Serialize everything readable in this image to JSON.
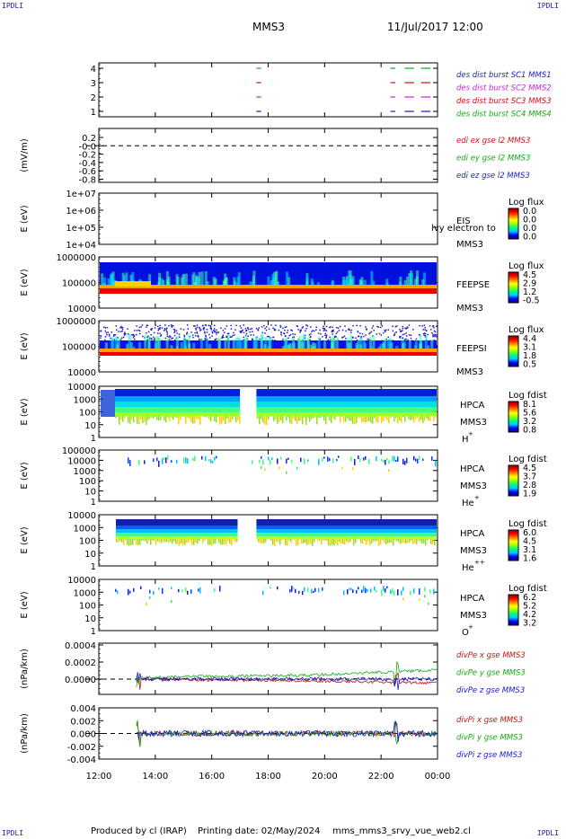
{
  "corner_label": "IPDLI",
  "header": {
    "spacecraft": "MMS3",
    "datetime": "11/Jul/2017 12:00"
  },
  "footer": {
    "produced_by": "Produced by cl (IRAP)",
    "printing_date": "Printing date: 02/May/2024",
    "script": "mms_mms3_srvy_vue_web2.cl"
  },
  "x_ticks": [
    "12:00",
    "14:00",
    "16:00",
    "18:00",
    "20:00",
    "22:00",
    "00:00"
  ],
  "panels": [
    {
      "id": "burst",
      "y_ticks": [
        "4",
        "3",
        "2",
        "1"
      ],
      "legend": [
        {
          "text": "des dist burst SC1 MMS1",
          "color": "#1a1acc"
        },
        {
          "text": "des dist burst SC2 MMS2",
          "color": "#cc22cc"
        },
        {
          "text": "des dist burst SC3 MMS3",
          "color": "#cc1111"
        },
        {
          "text": "des dist burst SC4 MMS4",
          "color": "#11aa11"
        }
      ]
    },
    {
      "id": "edi",
      "ylabel": "(mV/m)",
      "y_ticks": [
        "0.2",
        "-0.0",
        "-0.2",
        "-0.4",
        "-0.6",
        "-0.8"
      ],
      "legend": [
        {
          "text": "edi ex gse l2 MMS3",
          "color": "#cc1111"
        },
        {
          "text": "edi ey gse l2 MMS3",
          "color": "#11aa11"
        },
        {
          "text": "edi ez gse l2 MMS3",
          "color": "#1a1acc"
        }
      ]
    },
    {
      "id": "eis",
      "ylabel": "E (eV)",
      "y_ticks": [
        "1e+07",
        "1e+06",
        "1e+05",
        "1e+04"
      ],
      "label1": "EIS",
      "label2": "MMS3",
      "overlay": "lvy electron to",
      "cb_title": "Log flux",
      "cb_ticks": [
        "0.0",
        "0.0",
        "0.0",
        "0.0"
      ]
    },
    {
      "id": "feepse",
      "ylabel": "E (eV)",
      "y_ticks": [
        "1000000",
        "100000",
        "10000"
      ],
      "label1": "FEEPSE",
      "label2": "MMS3",
      "cb_title": "Log flux",
      "cb_ticks": [
        "4.5",
        "2.9",
        "1.2",
        "-0.5"
      ]
    },
    {
      "id": "feepsi",
      "ylabel": "E (eV)",
      "y_ticks": [
        "1000000",
        "100000",
        "10000"
      ],
      "label1": "FEEPSI",
      "label2": "MMS3",
      "cb_title": "Log flux",
      "cb_ticks": [
        "4.4",
        "3.1",
        "1.8",
        "0.5"
      ]
    },
    {
      "id": "hpca_h",
      "ylabel": "E (eV)",
      "y_ticks": [
        "10000",
        "1000",
        "100",
        "10",
        "1"
      ],
      "label1": "HPCA",
      "label2": "MMS3",
      "species": "H",
      "charge": "+",
      "cb_title": "Log fdist",
      "cb_ticks": [
        "8.1",
        "5.6",
        "3.2",
        "0.8"
      ]
    },
    {
      "id": "hpca_he1",
      "ylabel": "E (eV)",
      "y_ticks": [
        "100000",
        "10000",
        "1000",
        "100",
        "10",
        "1"
      ],
      "label1": "HPCA",
      "label2": "MMS3",
      "species": "He",
      "charge": "+",
      "cb_title": "Log fdist",
      "cb_ticks": [
        "4.5",
        "3.7",
        "2.8",
        "1.9"
      ]
    },
    {
      "id": "hpca_he2",
      "ylabel": "E (eV)",
      "y_ticks": [
        "10000",
        "1000",
        "100",
        "10",
        "1"
      ],
      "label1": "HPCA",
      "label2": "MMS3",
      "species": "He",
      "charge": "++",
      "cb_title": "Log fdist",
      "cb_ticks": [
        "6.0",
        "4.5",
        "3.1",
        "1.6"
      ]
    },
    {
      "id": "hpca_o",
      "ylabel": "E (eV)",
      "y_ticks": [
        "10000",
        "1000",
        "100",
        "10",
        "1"
      ],
      "label1": "HPCA",
      "label2": "MMS3",
      "species": "O",
      "charge": "+",
      "cb_title": "Log fdist",
      "cb_ticks": [
        "6.2",
        "5.2",
        "4.2",
        "3.2"
      ]
    },
    {
      "id": "divpe",
      "ylabel": "(nPa/km)",
      "y_ticks": [
        "0.0004",
        "0.0002",
        "0.0000"
      ],
      "legend": [
        {
          "text": "divPe x gse MMS3",
          "color": "#cc1111"
        },
        {
          "text": "divPe y gse MMS3",
          "color": "#11aa11"
        },
        {
          "text": "divPe z gse MMS3",
          "color": "#1a1acc"
        }
      ]
    },
    {
      "id": "divpi",
      "ylabel": "(nPa/km)",
      "y_ticks": [
        "0.004",
        "0.002",
        "0.000",
        "-0.002",
        "-0.004"
      ],
      "legend": [
        {
          "text": "divPi x gse MMS3",
          "color": "#cc1111"
        },
        {
          "text": "divPi y gse MMS3",
          "color": "#11aa11"
        },
        {
          "text": "divPi z gse MMS3",
          "color": "#1a1acc"
        }
      ]
    }
  ],
  "chart_data": {
    "type": "line",
    "x_range": [
      "12:00",
      "00:00"
    ],
    "panels": [
      {
        "name": "burst",
        "ylim": [
          1,
          4
        ],
        "series": [
          {
            "name": "des dist burst SC1 MMS1",
            "level": 1,
            "intervals": [
              [
                "17:35",
                "17:45"
              ],
              [
                "22:20",
                "22:30"
              ],
              [
                "22:50",
                "23:10"
              ],
              [
                "23:25",
                "23:45"
              ]
            ]
          },
          {
            "name": "des dist burst SC2 MMS2",
            "level": 2,
            "intervals": [
              [
                "17:35",
                "17:45"
              ],
              [
                "22:20",
                "22:30"
              ],
              [
                "22:50",
                "23:10"
              ],
              [
                "23:25",
                "23:45"
              ]
            ]
          },
          {
            "name": "des dist burst SC3 MMS3",
            "level": 3,
            "intervals": [
              [
                "17:35",
                "17:45"
              ],
              [
                "22:20",
                "22:30"
              ],
              [
                "22:50",
                "23:10"
              ],
              [
                "23:25",
                "23:45"
              ]
            ]
          },
          {
            "name": "des dist burst SC4 MMS4",
            "level": 4,
            "intervals": [
              [
                "17:35",
                "17:45"
              ],
              [
                "22:20",
                "22:30"
              ],
              [
                "22:50",
                "23:10"
              ],
              [
                "23:25",
                "23:45"
              ]
            ]
          }
        ]
      },
      {
        "name": "edi",
        "ylim": [
          -0.9,
          0.3
        ],
        "reference_line": 0.0
      },
      {
        "name": "eis",
        "scale": "log",
        "ylim": [
          10000,
          10000000
        ]
      },
      {
        "name": "feepse",
        "scale": "log",
        "ylim": [
          10000,
          1000000
        ],
        "colorbar": [
          -0.5,
          4.5
        ]
      },
      {
        "name": "feepsi",
        "scale": "log",
        "ylim": [
          10000,
          1000000
        ],
        "colorbar": [
          0.5,
          4.4
        ]
      },
      {
        "name": "hpca_h",
        "scale": "log",
        "ylim": [
          1,
          10000
        ],
        "colorbar": [
          0.8,
          8.1
        ],
        "data_gap": [
          "17:00",
          "17:35"
        ]
      },
      {
        "name": "hpca_he1",
        "scale": "log",
        "ylim": [
          1,
          100000
        ],
        "colorbar": [
          1.9,
          4.5
        ]
      },
      {
        "name": "hpca_he2",
        "scale": "log",
        "ylim": [
          1,
          10000
        ],
        "colorbar": [
          1.6,
          6.0
        ],
        "data_gap": [
          "16:55",
          "17:35"
        ]
      },
      {
        "name": "hpca_o",
        "scale": "log",
        "ylim": [
          1,
          10000
        ],
        "colorbar": [
          3.2,
          6.2
        ]
      },
      {
        "name": "divpe",
        "ylim": [
          -0.0001,
          0.0004
        ],
        "reference_line": 0.0,
        "data_start": "13:20",
        "series": [
          {
            "name": "divPe x gse MMS3",
            "trend": [
              [
                13.4,
                0.0
              ],
              [
                18,
                0.0
              ],
              [
                20,
                -2e-05
              ],
              [
                24,
                -3e-05
              ]
            ]
          },
          {
            "name": "divPe y gse MMS3",
            "trend": [
              [
                13.4,
                3e-05
              ],
              [
                18,
                2e-05
              ],
              [
                20,
                4e-05
              ],
              [
                24,
                6e-05
              ]
            ]
          },
          {
            "name": "divPe z gse MMS3",
            "trend": [
              [
                13.4,
                0.0
              ],
              [
                24,
                0.0
              ]
            ]
          }
        ]
      },
      {
        "name": "divpi",
        "ylim": [
          -0.005,
          0.005
        ],
        "reference_line": 0.0,
        "data_start": "13:20",
        "series": [
          {
            "name": "divPi x gse MMS3"
          },
          {
            "name": "divPi y gse MMS3"
          },
          {
            "name": "divPi z gse MMS3"
          }
        ]
      }
    ]
  }
}
